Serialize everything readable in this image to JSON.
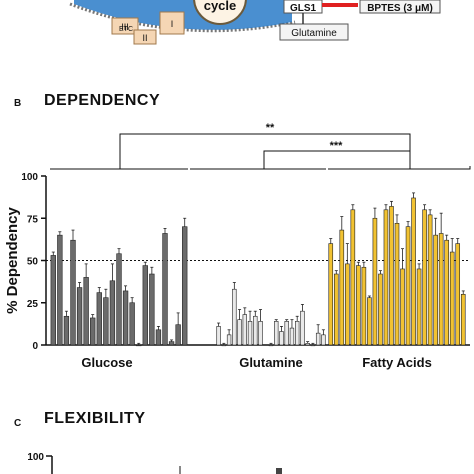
{
  "diagram": {
    "cycle_label": "cycle",
    "gls1_label": "GLS1",
    "inhibitor_label": "BPTES (3 μM)",
    "glutamine_label": "Glutamine",
    "etc_label": "ETC",
    "complex_labels": [
      "III",
      "II",
      "I"
    ]
  },
  "panel_b": {
    "letter": "B",
    "title": "DEPENDENCY"
  },
  "panel_c": {
    "letter": "C",
    "title": "FLEXIBILITY",
    "y_tick_top": "100"
  },
  "significance": {
    "outer": "**",
    "inner": "***"
  },
  "colors": {
    "glucose": "#6b6b6b",
    "glutamine": "#e9e9e9",
    "fatty_acids": "#f1c232"
  },
  "chart_data": {
    "type": "bar",
    "ylabel": "% Dependency",
    "ylim": [
      0,
      100
    ],
    "yticks": [
      0,
      25,
      50,
      75,
      100
    ],
    "reference_line": 50,
    "grid": false,
    "groups": [
      "Glucose",
      "Glutamine",
      "Fatty Acids"
    ],
    "series": [
      {
        "name": "Glucose",
        "values": [
          53,
          65,
          17,
          62,
          34,
          40,
          16,
          31,
          28,
          38,
          54,
          32,
          25,
          0,
          47,
          42,
          9,
          66,
          2,
          12,
          70
        ],
        "errors": [
          2,
          2,
          3,
          6,
          3,
          8,
          2,
          3,
          5,
          10,
          3,
          3,
          3,
          1,
          2,
          4,
          2,
          3,
          1,
          7,
          5
        ]
      },
      {
        "name": "Glutamine",
        "values": [
          11,
          0,
          6,
          33,
          15,
          18,
          14,
          17,
          14,
          0,
          14,
          8,
          14,
          10,
          14,
          20,
          1,
          0,
          7,
          6
        ],
        "errors": [
          2,
          1,
          3,
          4,
          6,
          4,
          6,
          3,
          7,
          1,
          1,
          3,
          1,
          5,
          3,
          4,
          1,
          1,
          5,
          3
        ],
        "empty_slot_after": 8
      },
      {
        "name": "Fatty Acids",
        "values": [
          60,
          42,
          68,
          48,
          80,
          47,
          46,
          28,
          75,
          42,
          80,
          82,
          72,
          45,
          70,
          87,
          45,
          80,
          77,
          65,
          66,
          62,
          55,
          60,
          30
        ],
        "errors": [
          3,
          2,
          8,
          12,
          3,
          2,
          3,
          1,
          6,
          2,
          3,
          3,
          5,
          12,
          3,
          3,
          3,
          3,
          3,
          10,
          12,
          3,
          8,
          3,
          2
        ]
      }
    ]
  }
}
